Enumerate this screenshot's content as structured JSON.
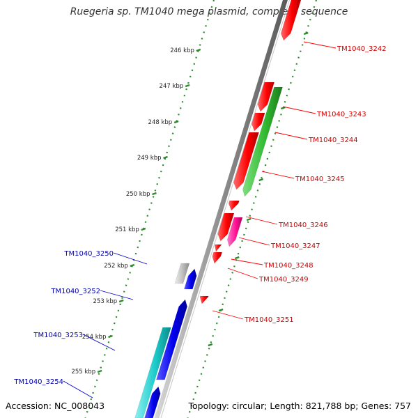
{
  "title": "Ruegeria sp. TM1040 mega plasmid, complete sequence",
  "footer": {
    "accession": "Accession: NC_008043",
    "summary": "Topology: circular; Length: 821,788 bp; Genes: 757"
  },
  "ticks": [
    "246 kbp",
    "247 kbp",
    "248 kbp",
    "249 kbp",
    "250 kbp",
    "251 kbp",
    "252 kbp",
    "253 kbp",
    "254 kbp",
    "255 kbp"
  ],
  "genes": [
    {
      "label": "TM1040_3242",
      "strand": "plus",
      "color": "#cc0000"
    },
    {
      "label": "TM1040_3243",
      "strand": "plus",
      "color": "#cc0000"
    },
    {
      "label": "TM1040_3244",
      "strand": "plus",
      "color": "#cc0000"
    },
    {
      "label": "TM1040_3245",
      "strand": "plus",
      "color": "#cc0000"
    },
    {
      "label": "TM1040_3246",
      "strand": "plus",
      "color": "#cc0000"
    },
    {
      "label": "TM1040_3247",
      "strand": "plus",
      "color": "#cc0000"
    },
    {
      "label": "TM1040_3248",
      "strand": "plus",
      "color": "#cc0000"
    },
    {
      "label": "TM1040_3249",
      "strand": "plus",
      "color": "#cc0000"
    },
    {
      "label": "TM1040_3251",
      "strand": "plus",
      "color": "#cc0000"
    },
    {
      "label": "TM1040_3250",
      "strand": "minus",
      "color": "#0000aa"
    },
    {
      "label": "TM1040_3252",
      "strand": "minus",
      "color": "#0000aa"
    },
    {
      "label": "TM1040_3253",
      "strand": "minus",
      "color": "#0000aa"
    },
    {
      "label": "TM1040_3254",
      "strand": "minus",
      "color": "#0000aa"
    }
  ],
  "colors": {
    "plus_strand_gene": "#ff0000",
    "minus_strand_gene": "#0000ee",
    "rna_gene": "#2ca02c",
    "pseudo_gene": "#ff1493",
    "misc_feature": "#bbbbbb",
    "other_feature": "#00cccc",
    "backbone": "#888888",
    "tick_mark": "#2a8a2a"
  }
}
